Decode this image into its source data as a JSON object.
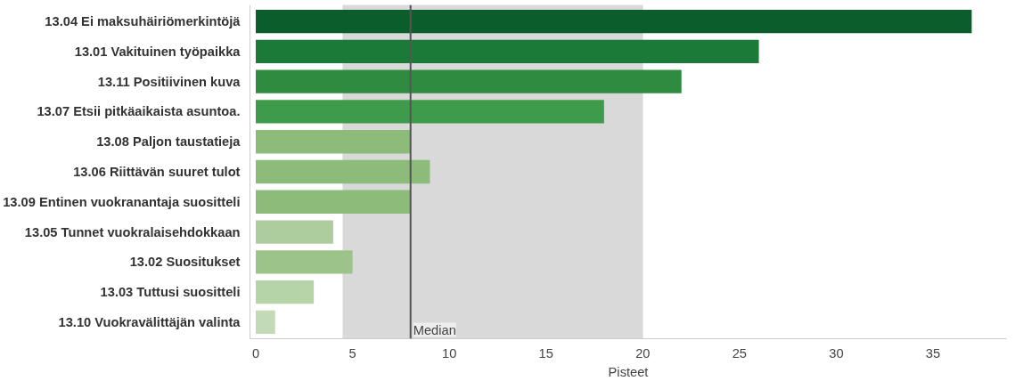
{
  "chart_data": {
    "type": "bar",
    "orientation": "horizontal",
    "xlabel": "Pisteet",
    "categories": [
      "13.04 Ei maksuhäiriömerkintöjä",
      "13.01 Vakituinen työpaikka",
      "13.11 Positiivinen kuva",
      "13.07 Etsii pitkäaikaista asuntoa.",
      "13.08 Paljon taustatieja",
      "13.06 Riittävän suuret tulot",
      "13.09 Entinen vuokranantaja suositteli",
      "13.05 Tunnet vuokralaisehdokkaan",
      "13.02 Suositukset",
      "13.03 Tuttusi suositteli",
      "13.10 Vuokravälittäjän valinta"
    ],
    "values": [
      37,
      26,
      22,
      18,
      8,
      9,
      8,
      4,
      5,
      3,
      1
    ],
    "colors": [
      "#0b5e2b",
      "#1b7a37",
      "#2e8b40",
      "#3e9b4b",
      "#8cbb7a",
      "#8cbb7a",
      "#8cbb7a",
      "#adcd9f",
      "#9cc48a",
      "#b5d4a8",
      "#c2dab7"
    ],
    "xlim": [
      -0.3,
      38.8
    ],
    "xticks": [
      0,
      5,
      10,
      15,
      20,
      25,
      30,
      35
    ],
    "ref_lines": [
      {
        "axis": "x",
        "value": 8,
        "label": "Median",
        "color": "#555555"
      }
    ],
    "bands": [
      {
        "axis": "x",
        "from": 4.5,
        "to": 20,
        "color": "#d9d9d9"
      }
    ],
    "grid": false
  }
}
